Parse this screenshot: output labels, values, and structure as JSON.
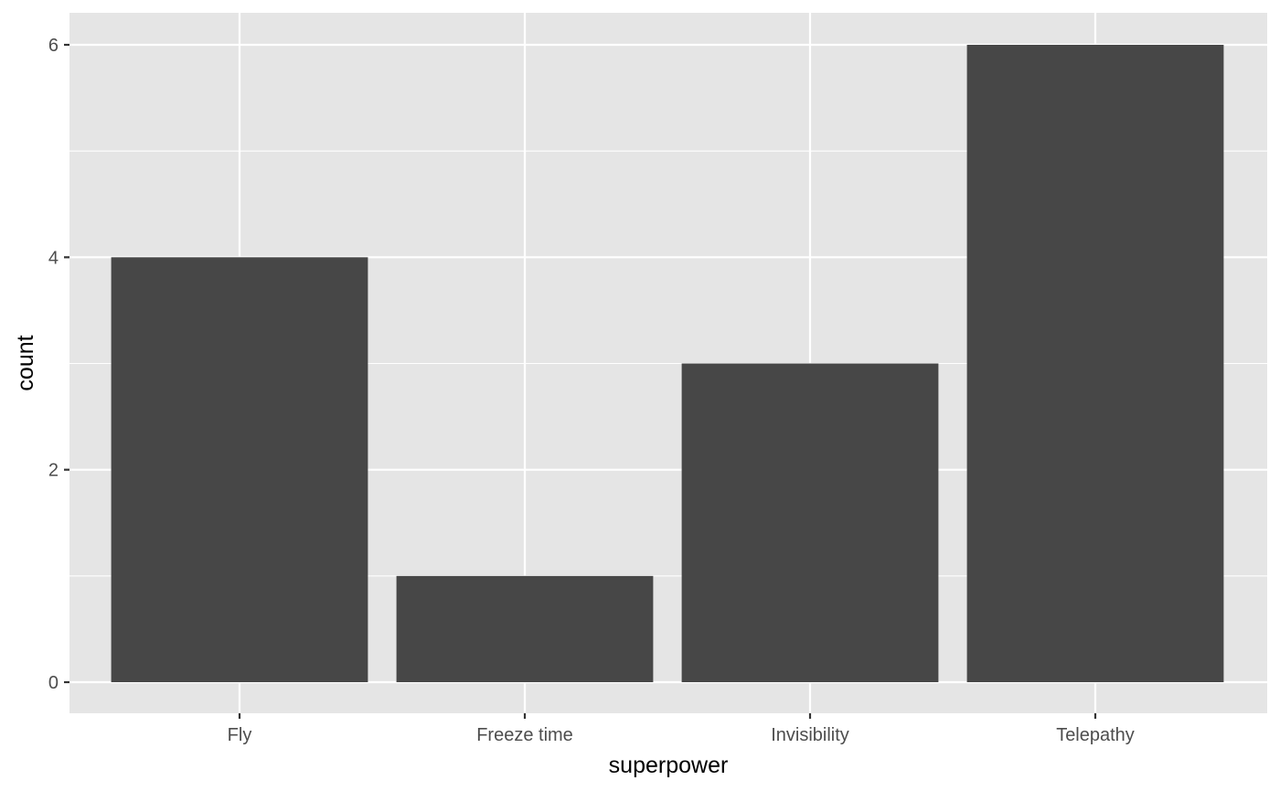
{
  "chart_data": {
    "type": "bar",
    "categories": [
      "Fly",
      "Freeze time",
      "Invisibility",
      "Telepathy"
    ],
    "values": [
      4,
      1,
      3,
      6
    ],
    "title": "",
    "xlabel": "superpower",
    "ylabel": "count",
    "ylim": [
      0,
      6
    ],
    "yticks": [
      0,
      2,
      4,
      6
    ],
    "grid": true,
    "colors": {
      "panel_background": "#e5e5e5",
      "grid": "#ffffff",
      "bar_fill": "#474747",
      "tick_text": "#4d4d4d",
      "axis_title": "#000000"
    }
  }
}
